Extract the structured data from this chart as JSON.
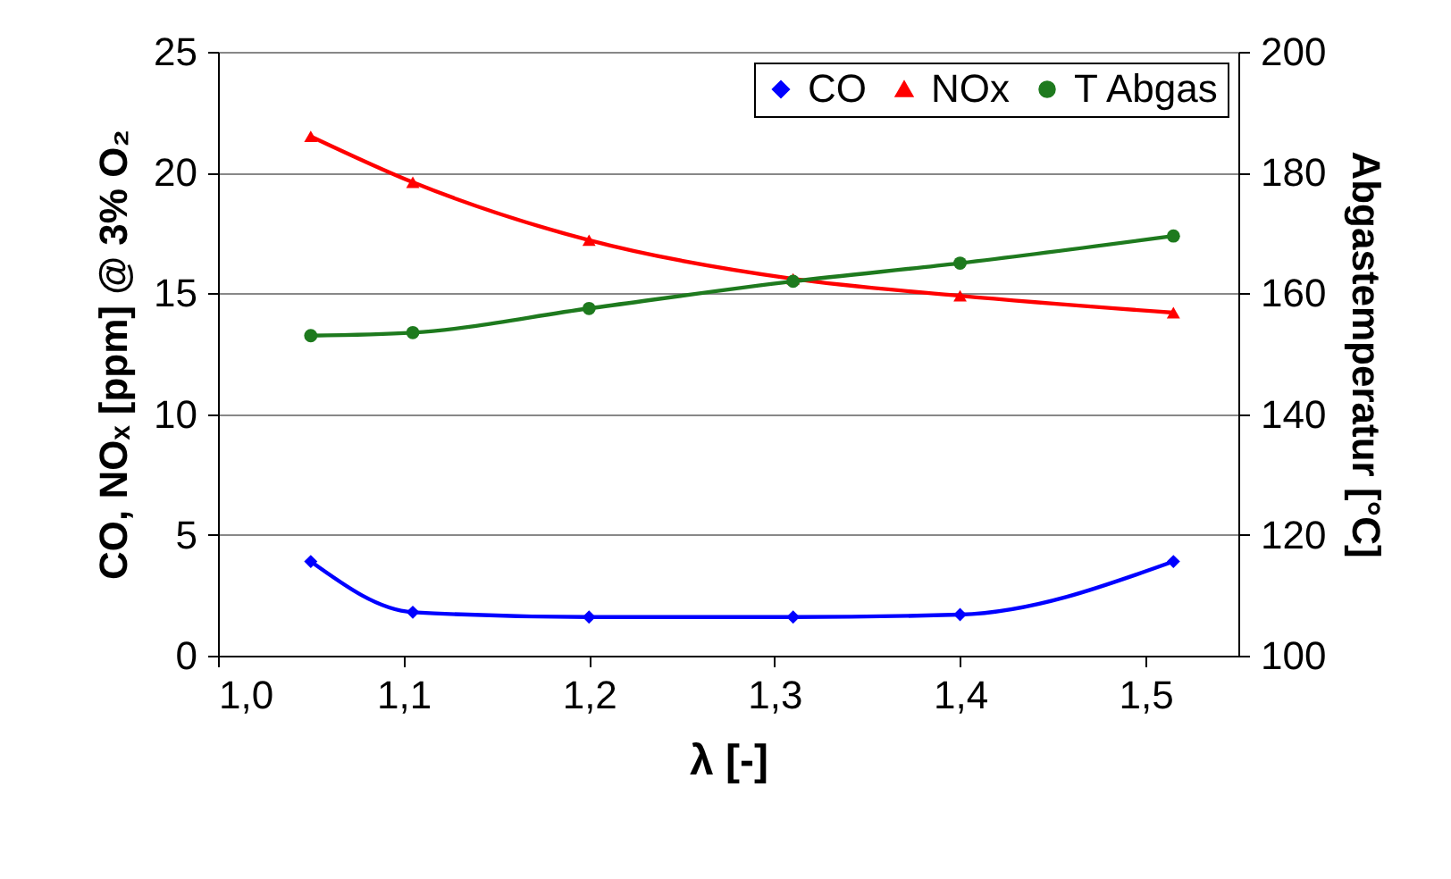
{
  "chart_data": {
    "type": "line",
    "xlabel": "λ [-]",
    "ylabel": "CO, NOₓ [ppm] @ 3% O₂",
    "y2label": "Abgastemperatur [°C]",
    "x": [
      1.05,
      1.105,
      1.2,
      1.31,
      1.4,
      1.515
    ],
    "series": [
      {
        "name": "CO",
        "color": "#0000ff",
        "marker": "diamond",
        "values": [
          3.9,
          1.8,
          1.6,
          1.6,
          1.7,
          3.9
        ]
      },
      {
        "name": "NOx",
        "color": "#ff0000",
        "marker": "triangle",
        "values": [
          21.5,
          19.6,
          17.2,
          15.6,
          14.9,
          14.2
        ]
      },
      {
        "name": "T Abgas",
        "color": "#1e7a1e",
        "marker": "circle",
        "axis": "y2",
        "values": [
          153,
          153.5,
          157.5,
          162,
          165,
          169.5
        ]
      }
    ],
    "xlim": [
      1.0,
      1.55
    ],
    "xticks": [
      {
        "value": 1.0,
        "label": "1,0"
      },
      {
        "value": 1.1,
        "label": "1,1"
      },
      {
        "value": 1.2,
        "label": "1,2"
      },
      {
        "value": 1.3,
        "label": "1,3"
      },
      {
        "value": 1.4,
        "label": "1,4"
      },
      {
        "value": 1.5,
        "label": "1,5"
      }
    ],
    "ylim": [
      0,
      25
    ],
    "yticks": [
      0,
      5,
      10,
      15,
      20,
      25
    ],
    "y2lim": [
      100,
      200
    ],
    "y2ticks": [
      100,
      120,
      140,
      160,
      180,
      200
    ],
    "grid": "y",
    "legend": "top right"
  }
}
